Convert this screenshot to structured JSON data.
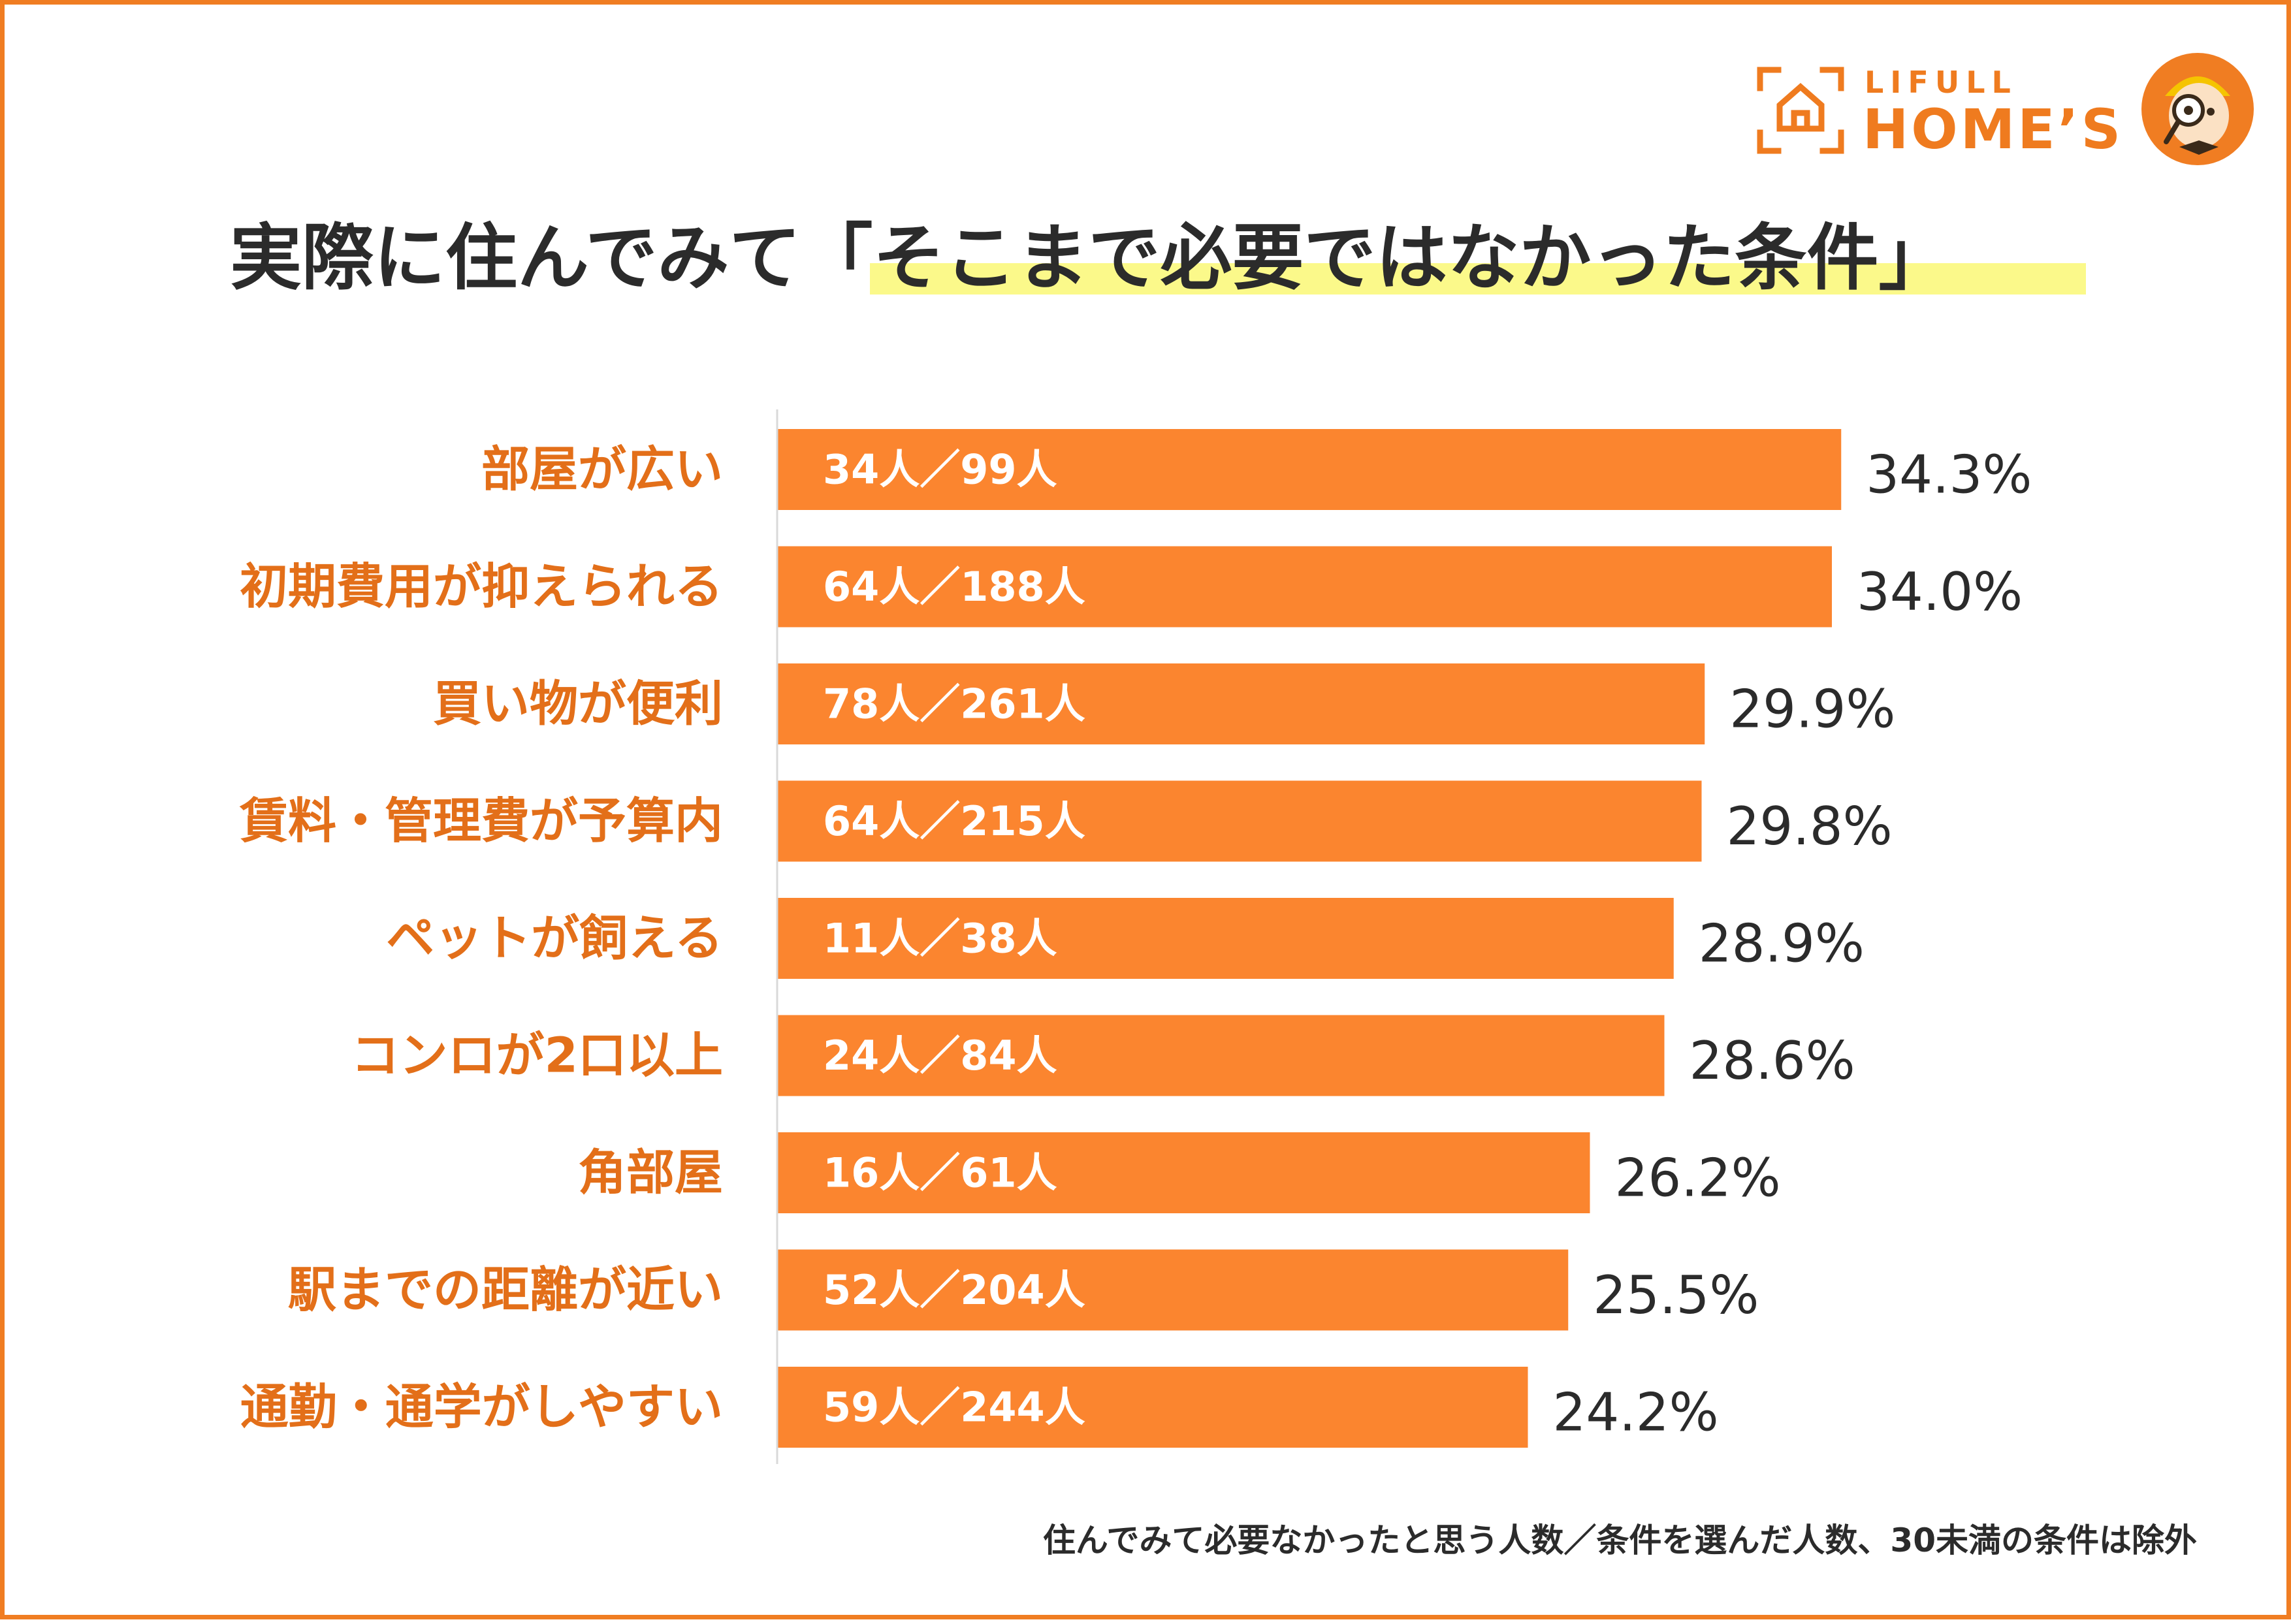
{
  "brand": {
    "line1": "LIFULL",
    "line2": "HOME’S",
    "color": "#ef7b1f"
  },
  "mascot": {
    "icon": "magnifier-mascot-icon"
  },
  "title": {
    "text": "実際に住んでみて「そこまで必要ではなかった条件」",
    "highlight_color": "#fbf98a"
  },
  "footnote": "住んでみて必要なかったと思う人数／条件を選んだ人数、30未満の条件は除外",
  "colors": {
    "bar": "#fb852f",
    "category_label": "#e36f19",
    "value_label": "#2b2b2b",
    "count_label": "#ffffff",
    "axis": "#d9d9d9",
    "border": "#f07d22"
  },
  "chart_data": {
    "type": "bar",
    "orientation": "horizontal",
    "title": "実際に住んでみて「そこまで必要ではなかった条件」",
    "xlim": [
      0,
      35
    ],
    "categories": [
      "部屋が広い",
      "初期費用が抑えられる",
      "買い物が便利",
      "賃料・管理費が予算内",
      "ペットが飼える",
      "コンロが2口以上",
      "角部屋",
      "駅までの距離が近い",
      "通勤・通学がしやすい"
    ],
    "values": [
      34.3,
      34.0,
      29.9,
      29.8,
      28.9,
      28.6,
      26.2,
      25.5,
      24.2
    ],
    "value_labels": [
      "34.3%",
      "34.0%",
      "29.9%",
      "29.8%",
      "28.9%",
      "28.6%",
      "26.2%",
      "25.5%",
      "24.2%"
    ],
    "count_labels": [
      "34人／99人",
      "64人／188人",
      "78人／261人",
      "64人／215人",
      "11人／38人",
      "24人／84人",
      "16人／61人",
      "52人／204人",
      "59人／244人"
    ]
  }
}
